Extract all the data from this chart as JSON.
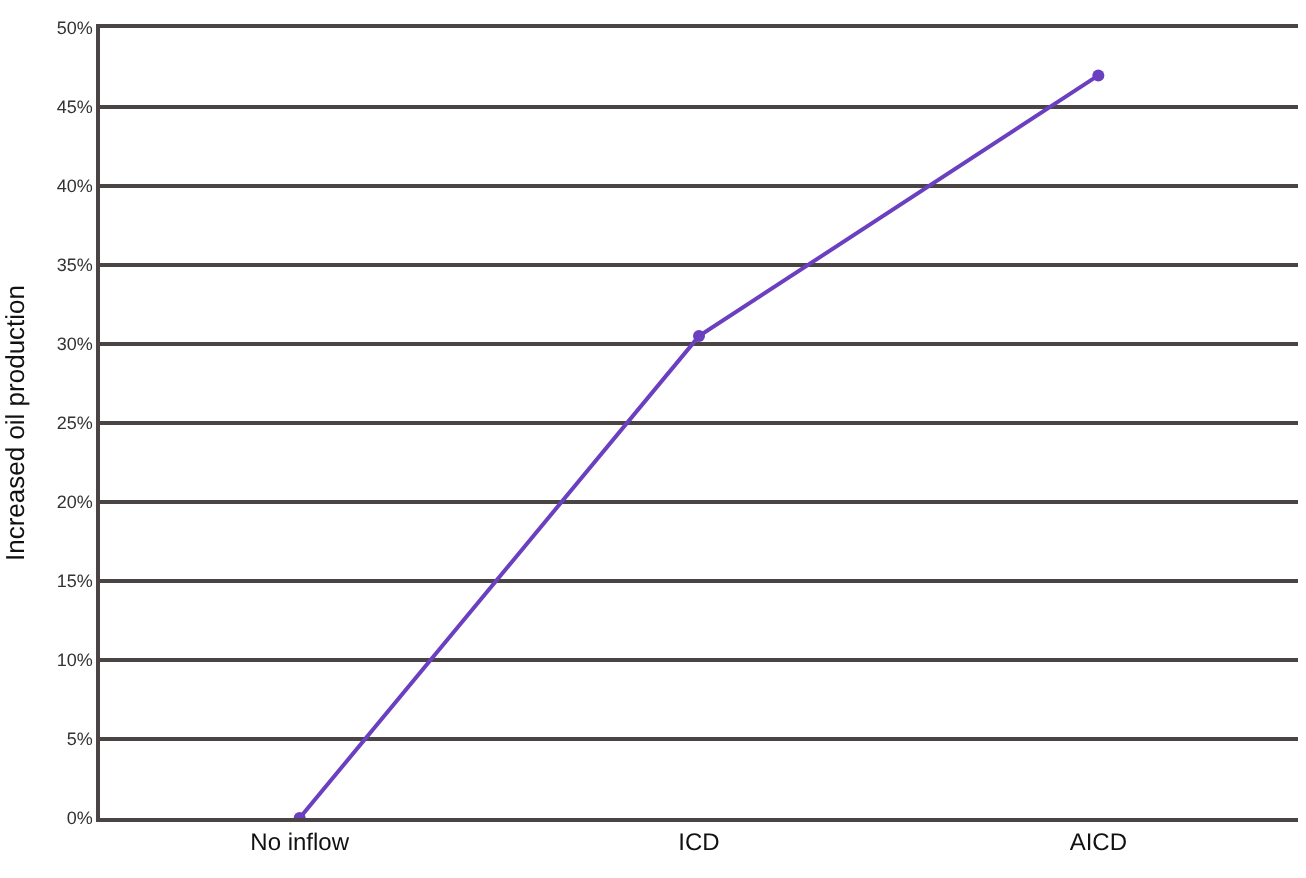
{
  "chart_data": {
    "type": "line",
    "ylabel": "Increased oil production",
    "categories": [
      "No inflow",
      "ICD",
      "AICD"
    ],
    "series": [
      {
        "color": "#6a3fc0",
        "values": [
          0,
          30.5,
          47
        ]
      }
    ],
    "ylim": [
      0,
      50
    ],
    "yticks": [
      {
        "value": 0,
        "label": "0%"
      },
      {
        "value": 5,
        "label": "5%"
      },
      {
        "value": 10,
        "label": "10%"
      },
      {
        "value": 15,
        "label": "15%"
      },
      {
        "value": 20,
        "label": "20%"
      },
      {
        "value": 25,
        "label": "25%"
      },
      {
        "value": 30,
        "label": "30%"
      },
      {
        "value": 35,
        "label": "35%"
      },
      {
        "value": 40,
        "label": "40%"
      },
      {
        "value": 45,
        "label": "45%"
      },
      {
        "value": 50,
        "label": "50%"
      }
    ],
    "grid": "y",
    "marker": "circle",
    "line_style": "solid"
  }
}
